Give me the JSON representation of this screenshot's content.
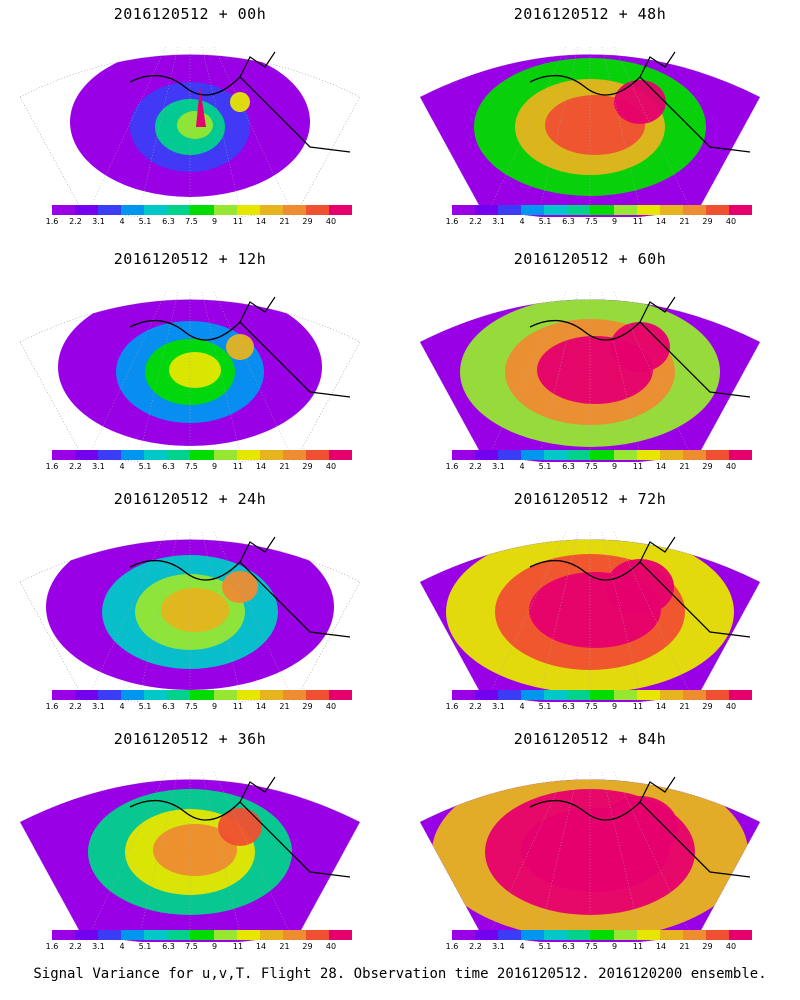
{
  "colorbar": {
    "labels": [
      "1.6",
      "2.2",
      "3.1",
      "4",
      "5.1",
      "6.3",
      "7.5",
      "9",
      "11",
      "14",
      "21",
      "29",
      "40"
    ],
    "colors": [
      "#9a00e6",
      "#7300ee",
      "#3c3cf5",
      "#0096f0",
      "#00c8c8",
      "#00d28c",
      "#00dc00",
      "#96e632",
      "#e6e600",
      "#e6b41e",
      "#ee8c32",
      "#f05032",
      "#e6006e"
    ]
  },
  "panels": [
    {
      "title": "2016120512 + 00h",
      "level": 0
    },
    {
      "title": "2016120512 + 48h",
      "level": 4
    },
    {
      "title": "2016120512 + 12h",
      "level": 1
    },
    {
      "title": "2016120512 + 60h",
      "level": 5
    },
    {
      "title": "2016120512 + 24h",
      "level": 2
    },
    {
      "title": "2016120512 + 72h",
      "level": 6
    },
    {
      "title": "2016120512 + 36h",
      "level": 3
    },
    {
      "title": "2016120512 + 84h",
      "level": 7
    }
  ],
  "caption": "Signal Variance for u,v,T. Flight 28. Observation time 2016120512. 2016120200 ensemble."
}
